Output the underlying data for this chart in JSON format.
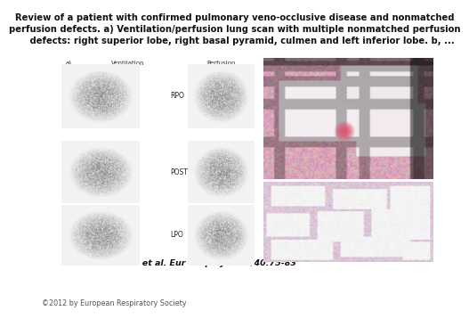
{
  "title": "Review of a patient with confirmed pulmonary veno-occlusive disease and nonmatched\nperfusion defects. a) Ventilation/perfusion lung scan with multiple nonmatched perfusion\n     defects: right superior lobe, right basal pyramid, culmen and left inferior lobe. b, ...",
  "citation": "Andrei Seferian et al. Eur Respir J 2012;40:75-83",
  "copyright": "©2012 by European Respiratory Society",
  "label_a": "a)",
  "label_ventilation": "Ventilation",
  "label_perfusion": "Perfusion",
  "label_rpo": "RPO",
  "label_post": "POST",
  "label_lpo": "LPO",
  "bg_color": "#ffffff",
  "title_fontsize": 7.2,
  "citation_fontsize": 6.8,
  "copyright_fontsize": 5.8,
  "label_fontsize": 5.0,
  "lung_label_fontsize": 5.5
}
